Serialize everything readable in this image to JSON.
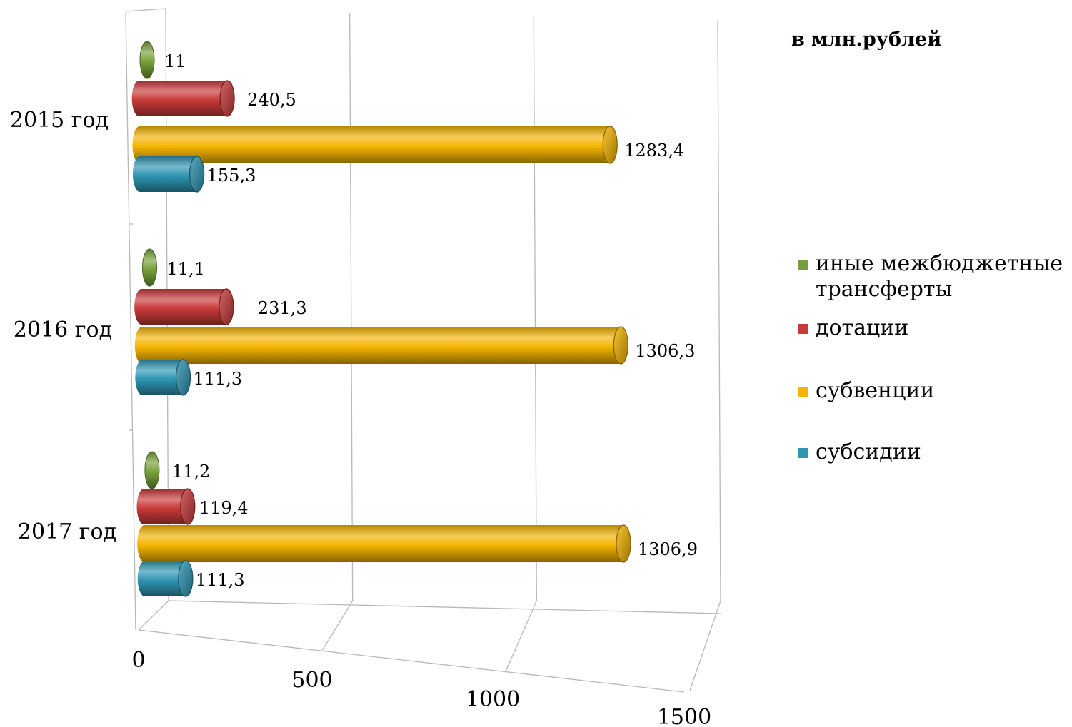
{
  "unit_label": "в млн.рублей",
  "chart_data": {
    "type": "bar",
    "orientation": "horizontal",
    "style": "3d-cylinder",
    "categories": [
      "2015 год",
      "2016 год",
      "2017 год"
    ],
    "series": [
      {
        "name": "иные межбюджетные трансферты",
        "color": "#77a03a",
        "values": [
          11,
          11.1,
          11.2
        ],
        "labels": [
          "11",
          "11,1",
          "11,2"
        ]
      },
      {
        "name": "дотации",
        "color": "#c93a3a",
        "values": [
          240.5,
          231.3,
          119.4
        ],
        "labels": [
          "240,5",
          "231,3",
          "119,4"
        ]
      },
      {
        "name": "субвенции",
        "color": "#f4b400",
        "values": [
          1283.4,
          1306.3,
          1306.9
        ],
        "labels": [
          "1283,4",
          "1306,3",
          "1306,9"
        ]
      },
      {
        "name": "субсидии",
        "color": "#2e95b3",
        "values": [
          155.3,
          111.3,
          111.3
        ],
        "labels": [
          "155,3",
          "111,3",
          "111,3"
        ]
      }
    ],
    "x_ticks": [
      "0",
      "500",
      "1000",
      "1500"
    ],
    "xlim": [
      0,
      1500
    ],
    "grid": true,
    "legend_position": "right"
  },
  "legend": {
    "items": [
      {
        "lines": [
          "иные межбюджетные",
          "трансферты"
        ],
        "color": "#77a03a"
      },
      {
        "lines": [
          "дотации"
        ],
        "color": "#c93a3a"
      },
      {
        "lines": [
          "субвенции"
        ],
        "color": "#f4b400"
      },
      {
        "lines": [
          "субсидии"
        ],
        "color": "#2e95b3"
      }
    ]
  }
}
